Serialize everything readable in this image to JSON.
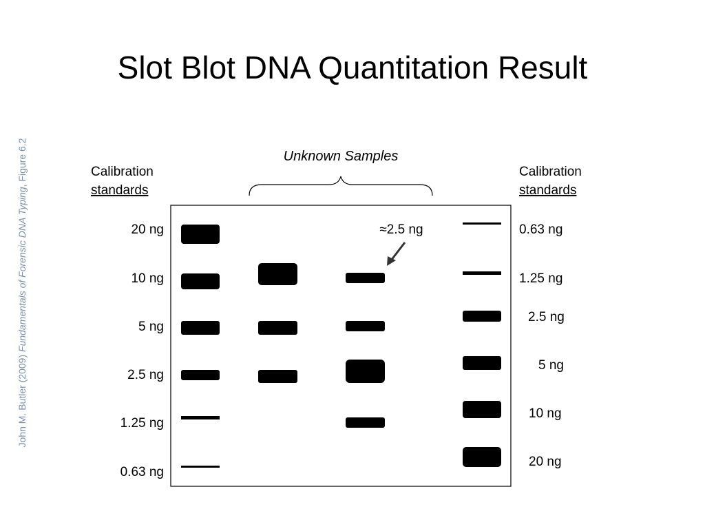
{
  "title": "Slot Blot DNA Quantitation Result",
  "credit": {
    "author": "John M. Butler (2009) ",
    "book": "Fundamentals of Forensic DNA Typing",
    "figure": ", Figure 6.2"
  },
  "unknown_samples": "Unknown Samples",
  "left_header": {
    "line1": "Calibration",
    "line2": "standards"
  },
  "right_header": {
    "line1": "Calibration",
    "line2": "standards"
  },
  "left_labels": [
    "20 ng",
    "10 ng",
    "5 ng",
    "2.5 ng",
    "1.25 ng",
    "0.63 ng"
  ],
  "right_labels": [
    "0.63 ng",
    "1.25 ng",
    "2.5 ng",
    "5 ng",
    "10 ng",
    "20 ng"
  ],
  "annotation": "≈2.5 ng"
}
